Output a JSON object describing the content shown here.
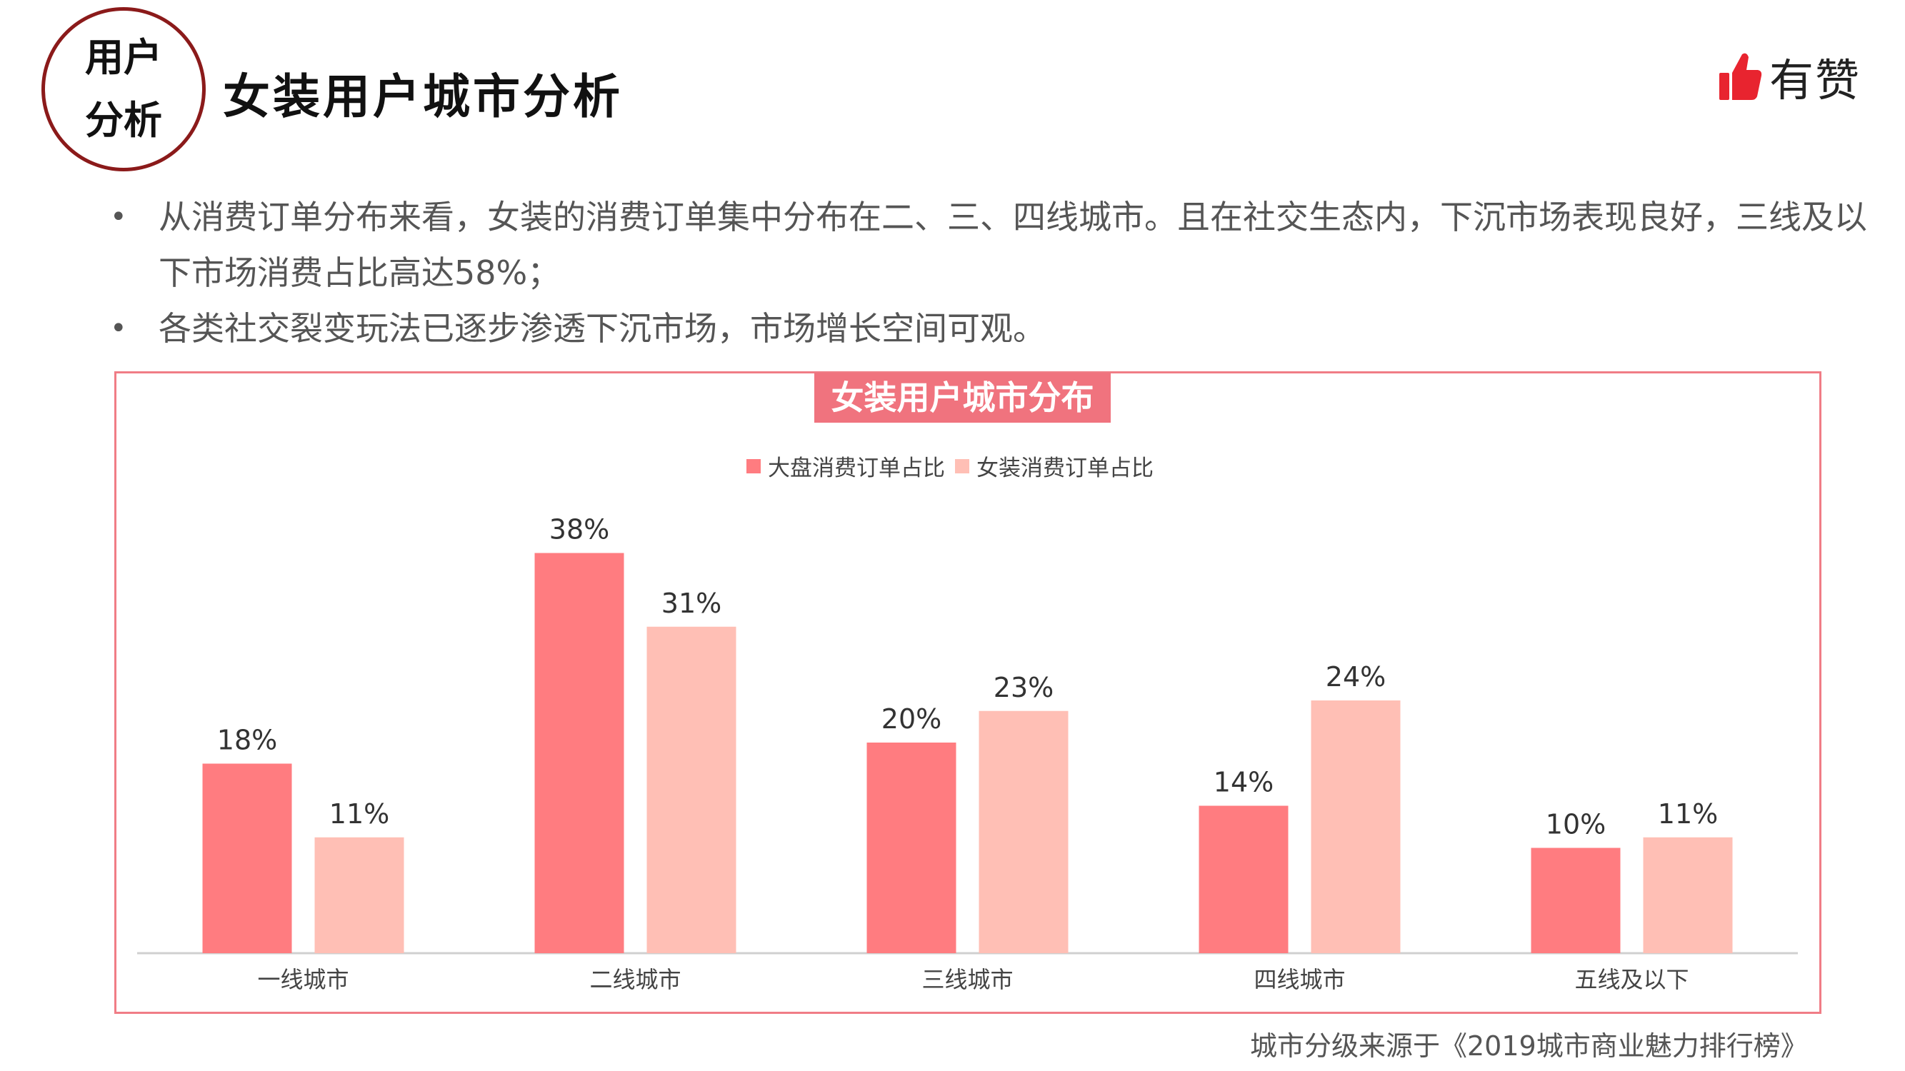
{
  "header": {
    "badge_line1": "用户",
    "badge_line2": "分析",
    "title": "女装用户城市分析",
    "brand_name": "有赞",
    "brand_icon": "thumbs-up-icon",
    "brand_color": "#e8242f"
  },
  "bullets": [
    "从消费订单分布来看，女装的消费订单集中分布在二、三、四线城市。且在社交生态内，下沉市场表现良好，三线及以下市场消费占比高达58%；",
    "各类社交裂变玩法已逐步渗透下沉市场，市场增长空间可观。"
  ],
  "chart_data": {
    "type": "bar",
    "title": "女装用户城市分布",
    "categories": [
      "一线城市",
      "二线城市",
      "三线城市",
      "四线城市",
      "五线及以下"
    ],
    "series": [
      {
        "name": "大盘消费订单占比",
        "values": [
          18,
          38,
          20,
          14,
          10
        ],
        "color": "#ff7c80"
      },
      {
        "name": "女装消费订单占比",
        "values": [
          11,
          31,
          23,
          24,
          11
        ],
        "color": "#ffbfb5"
      }
    ],
    "value_suffix": "%",
    "ylim": [
      0,
      40
    ],
    "legend_position": "top-center",
    "grid": false
  },
  "source_note": "城市分级来源于《2019城市商业魅力排行榜》"
}
